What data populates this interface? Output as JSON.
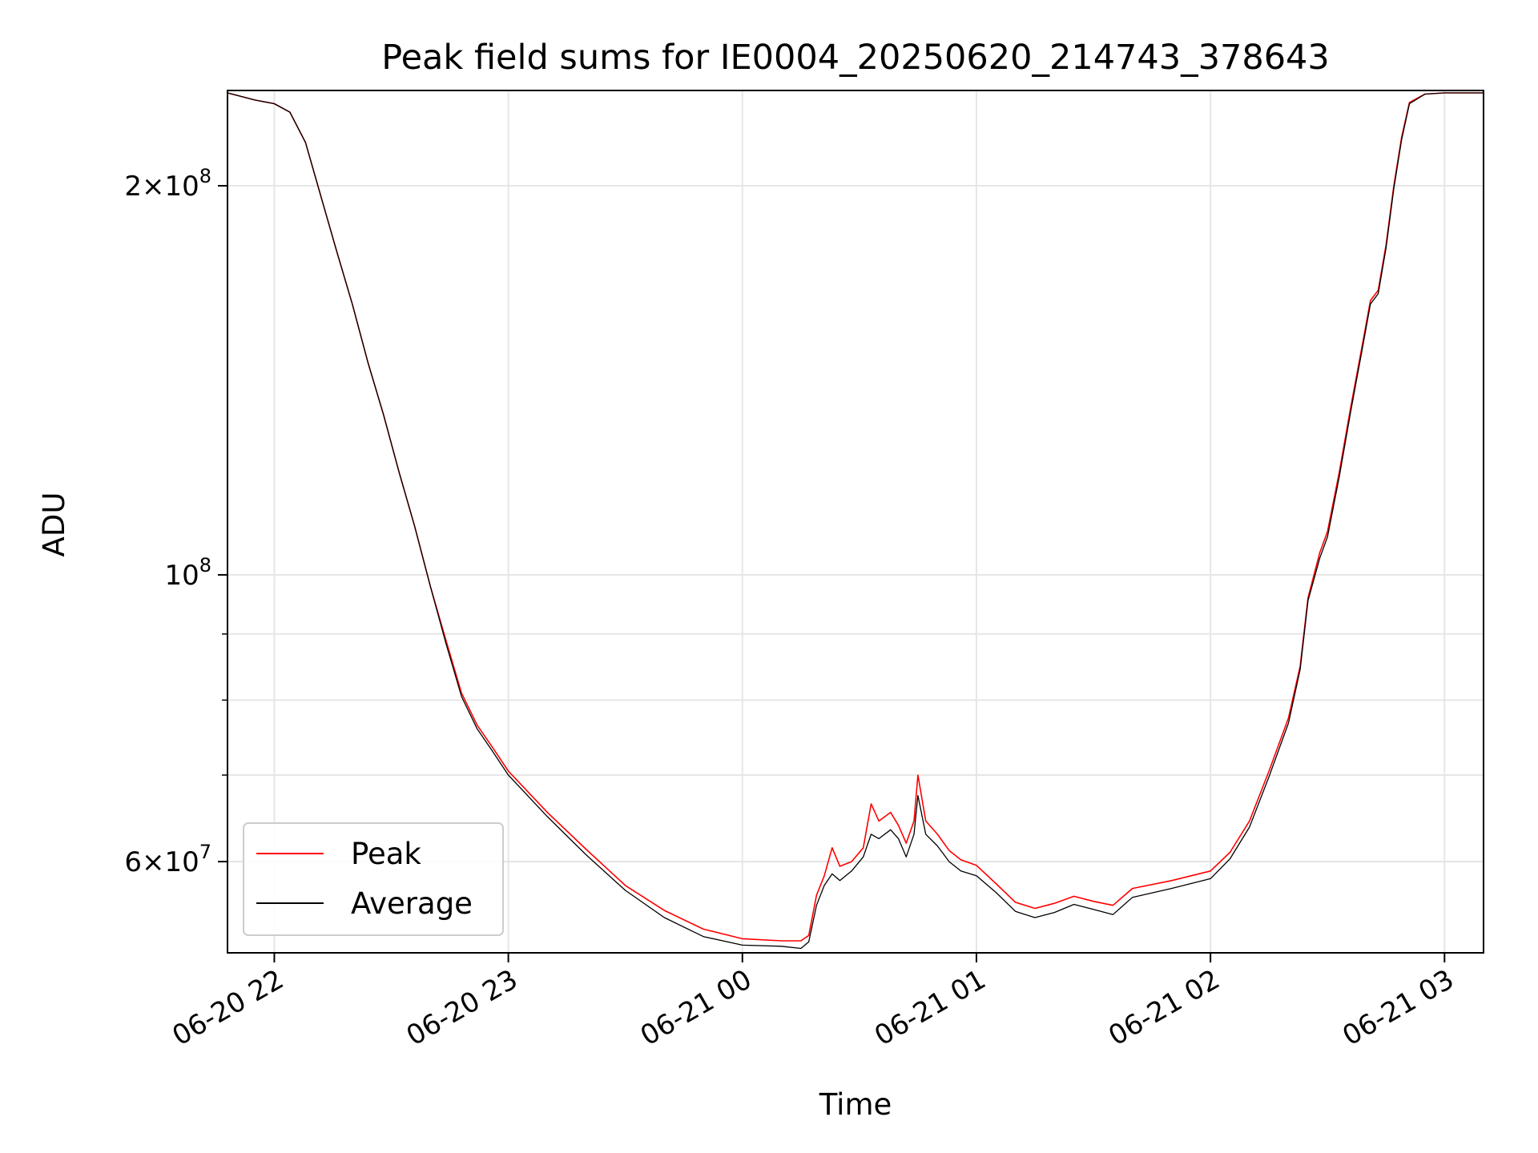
{
  "chart_data": {
    "type": "line",
    "title": "Peak field sums for IE0004_20250620_214743_378643",
    "xlabel": "Time",
    "ylabel": "ADU",
    "y_scale": "log",
    "xlim": [
      "2025-06-20T21:48",
      "2025-06-21T03:10"
    ],
    "ylim": [
      51000000,
      237000000
    ],
    "grid": true,
    "legend": {
      "position": "lower-left"
    },
    "x_ticks": [
      {
        "t": "2025-06-20T22:00",
        "label": "06-20 22"
      },
      {
        "t": "2025-06-20T23:00",
        "label": "06-20 23"
      },
      {
        "t": "2025-06-21T00:00",
        "label": "06-21 00"
      },
      {
        "t": "2025-06-21T01:00",
        "label": "06-21 01"
      },
      {
        "t": "2025-06-21T02:00",
        "label": "06-21 02"
      },
      {
        "t": "2025-06-21T03:00",
        "label": "06-21 03"
      }
    ],
    "y_major_ticks": [
      {
        "value": 60000000,
        "mantissa": "6",
        "exponent": "7"
      },
      {
        "value": 100000000,
        "mantissa": "",
        "exponent": "8"
      },
      {
        "value": 200000000,
        "mantissa": "2",
        "exponent": "8"
      }
    ],
    "y_minor_ticks": [
      60000000,
      70000000,
      80000000,
      90000000,
      200000000
    ],
    "series": [
      {
        "name": "Peak",
        "color": "#ff0000",
        "points": [
          [
            "2025-06-20T21:48",
            236000000
          ],
          [
            "2025-06-20T21:55",
            233000000
          ],
          [
            "2025-06-20T22:00",
            231500000
          ],
          [
            "2025-06-20T22:04",
            228000000
          ],
          [
            "2025-06-20T22:08",
            216000000
          ],
          [
            "2025-06-20T22:12",
            196000000
          ],
          [
            "2025-06-20T22:16",
            178000000
          ],
          [
            "2025-06-20T22:20",
            162000000
          ],
          [
            "2025-06-20T22:24",
            146000000
          ],
          [
            "2025-06-20T22:28",
            133000000
          ],
          [
            "2025-06-20T22:32",
            120000000
          ],
          [
            "2025-06-20T22:36",
            109000000
          ],
          [
            "2025-06-20T22:40",
            98000000
          ],
          [
            "2025-06-20T22:44",
            89000000
          ],
          [
            "2025-06-20T22:48",
            81000000
          ],
          [
            "2025-06-20T22:52",
            76500000
          ],
          [
            "2025-06-20T22:56",
            73500000
          ],
          [
            "2025-06-20T23:00",
            70500000
          ],
          [
            "2025-06-20T23:10",
            65500000
          ],
          [
            "2025-06-20T23:20",
            61300000
          ],
          [
            "2025-06-20T23:30",
            57500000
          ],
          [
            "2025-06-20T23:40",
            55000000
          ],
          [
            "2025-06-20T23:50",
            53200000
          ],
          [
            "2025-06-21T00:00",
            52300000
          ],
          [
            "2025-06-21T00:10",
            52100000
          ],
          [
            "2025-06-21T00:15",
            52100000
          ],
          [
            "2025-06-21T00:17",
            52600000
          ],
          [
            "2025-06-21T00:19",
            56500000
          ],
          [
            "2025-06-21T00:21",
            58500000
          ],
          [
            "2025-06-21T00:23",
            61500000
          ],
          [
            "2025-06-21T00:25",
            59500000
          ],
          [
            "2025-06-21T00:28",
            60000000
          ],
          [
            "2025-06-21T00:31",
            61500000
          ],
          [
            "2025-06-21T00:33",
            66500000
          ],
          [
            "2025-06-21T00:35",
            64500000
          ],
          [
            "2025-06-21T00:38",
            65500000
          ],
          [
            "2025-06-21T00:40",
            64000000
          ],
          [
            "2025-06-21T00:42",
            62000000
          ],
          [
            "2025-06-21T00:44",
            64500000
          ],
          [
            "2025-06-21T00:45",
            70000000
          ],
          [
            "2025-06-21T00:47",
            64500000
          ],
          [
            "2025-06-21T00:50",
            63000000
          ],
          [
            "2025-06-21T00:53",
            61200000
          ],
          [
            "2025-06-21T00:56",
            60200000
          ],
          [
            "2025-06-21T01:00",
            59600000
          ],
          [
            "2025-06-21T01:05",
            57700000
          ],
          [
            "2025-06-21T01:10",
            55800000
          ],
          [
            "2025-06-21T01:15",
            55200000
          ],
          [
            "2025-06-21T01:20",
            55700000
          ],
          [
            "2025-06-21T01:25",
            56400000
          ],
          [
            "2025-06-21T01:30",
            55900000
          ],
          [
            "2025-06-21T01:35",
            55500000
          ],
          [
            "2025-06-21T01:40",
            57200000
          ],
          [
            "2025-06-21T01:50",
            58000000
          ],
          [
            "2025-06-21T02:00",
            59000000
          ],
          [
            "2025-06-21T02:05",
            61000000
          ],
          [
            "2025-06-21T02:10",
            64500000
          ],
          [
            "2025-06-21T02:15",
            70500000
          ],
          [
            "2025-06-21T02:20",
            77500000
          ],
          [
            "2025-06-21T02:23",
            85000000
          ],
          [
            "2025-06-21T02:25",
            96000000
          ],
          [
            "2025-06-21T02:28",
            104000000
          ],
          [
            "2025-06-21T02:30",
            108000000
          ],
          [
            "2025-06-21T02:33",
            120000000
          ],
          [
            "2025-06-21T02:36",
            135000000
          ],
          [
            "2025-06-21T02:39",
            151000000
          ],
          [
            "2025-06-21T02:41",
            163000000
          ],
          [
            "2025-06-21T02:43",
            166000000
          ],
          [
            "2025-06-21T02:45",
            180000000
          ],
          [
            "2025-06-21T02:47",
            200000000
          ],
          [
            "2025-06-21T02:49",
            218000000
          ],
          [
            "2025-06-21T02:51",
            232000000
          ],
          [
            "2025-06-21T02:55",
            235500000
          ],
          [
            "2025-06-21T03:00",
            236000000
          ],
          [
            "2025-06-21T03:10",
            236000000
          ]
        ]
      },
      {
        "name": "Average",
        "color": "#000000",
        "points": [
          [
            "2025-06-20T21:48",
            236000000
          ],
          [
            "2025-06-20T21:55",
            233000000
          ],
          [
            "2025-06-20T22:00",
            231500000
          ],
          [
            "2025-06-20T22:04",
            228000000
          ],
          [
            "2025-06-20T22:08",
            216000000
          ],
          [
            "2025-06-20T22:12",
            196000000
          ],
          [
            "2025-06-20T22:16",
            178000000
          ],
          [
            "2025-06-20T22:20",
            162000000
          ],
          [
            "2025-06-20T22:24",
            146000000
          ],
          [
            "2025-06-20T22:28",
            133000000
          ],
          [
            "2025-06-20T22:32",
            120000000
          ],
          [
            "2025-06-20T22:36",
            109000000
          ],
          [
            "2025-06-20T22:40",
            98000000
          ],
          [
            "2025-06-20T22:44",
            88500000
          ],
          [
            "2025-06-20T22:48",
            80500000
          ],
          [
            "2025-06-20T22:52",
            76000000
          ],
          [
            "2025-06-20T22:56",
            73000000
          ],
          [
            "2025-06-20T23:00",
            70000000
          ],
          [
            "2025-06-20T23:10",
            65000000
          ],
          [
            "2025-06-20T23:20",
            60700000
          ],
          [
            "2025-06-20T23:30",
            57000000
          ],
          [
            "2025-06-20T23:40",
            54300000
          ],
          [
            "2025-06-20T23:50",
            52500000
          ],
          [
            "2025-06-21T00:00",
            51700000
          ],
          [
            "2025-06-21T00:10",
            51600000
          ],
          [
            "2025-06-21T00:15",
            51400000
          ],
          [
            "2025-06-21T00:17",
            52000000
          ],
          [
            "2025-06-21T00:19",
            55500000
          ],
          [
            "2025-06-21T00:21",
            57500000
          ],
          [
            "2025-06-21T00:23",
            58700000
          ],
          [
            "2025-06-21T00:25",
            58000000
          ],
          [
            "2025-06-21T00:28",
            59000000
          ],
          [
            "2025-06-21T00:31",
            60500000
          ],
          [
            "2025-06-21T00:33",
            63000000
          ],
          [
            "2025-06-21T00:35",
            62500000
          ],
          [
            "2025-06-21T00:38",
            63500000
          ],
          [
            "2025-06-21T00:40",
            62500000
          ],
          [
            "2025-06-21T00:42",
            60500000
          ],
          [
            "2025-06-21T00:44",
            63000000
          ],
          [
            "2025-06-21T00:45",
            67500000
          ],
          [
            "2025-06-21T00:47",
            63000000
          ],
          [
            "2025-06-21T00:50",
            61700000
          ],
          [
            "2025-06-21T00:53",
            60000000
          ],
          [
            "2025-06-21T00:56",
            59000000
          ],
          [
            "2025-06-21T01:00",
            58500000
          ],
          [
            "2025-06-21T01:05",
            56800000
          ],
          [
            "2025-06-21T01:10",
            54900000
          ],
          [
            "2025-06-21T01:15",
            54300000
          ],
          [
            "2025-06-21T01:20",
            54800000
          ],
          [
            "2025-06-21T01:25",
            55600000
          ],
          [
            "2025-06-21T01:30",
            55100000
          ],
          [
            "2025-06-21T01:35",
            54600000
          ],
          [
            "2025-06-21T01:40",
            56300000
          ],
          [
            "2025-06-21T01:50",
            57200000
          ],
          [
            "2025-06-21T02:00",
            58200000
          ],
          [
            "2025-06-21T02:05",
            60300000
          ],
          [
            "2025-06-21T02:10",
            63800000
          ],
          [
            "2025-06-21T02:15",
            69800000
          ],
          [
            "2025-06-21T02:20",
            76800000
          ],
          [
            "2025-06-21T02:23",
            84500000
          ],
          [
            "2025-06-21T02:25",
            95500000
          ],
          [
            "2025-06-21T02:28",
            103000000
          ],
          [
            "2025-06-21T02:30",
            107000000
          ],
          [
            "2025-06-21T02:33",
            119000000
          ],
          [
            "2025-06-21T02:36",
            134000000
          ],
          [
            "2025-06-21T02:39",
            150000000
          ],
          [
            "2025-06-21T02:41",
            162000000
          ],
          [
            "2025-06-21T02:43",
            165000000
          ],
          [
            "2025-06-21T02:45",
            179000000
          ],
          [
            "2025-06-21T02:47",
            199000000
          ],
          [
            "2025-06-21T02:49",
            217000000
          ],
          [
            "2025-06-21T02:51",
            231500000
          ],
          [
            "2025-06-21T02:55",
            235500000
          ],
          [
            "2025-06-21T03:00",
            236000000
          ],
          [
            "2025-06-21T03:10",
            236000000
          ]
        ]
      }
    ]
  }
}
